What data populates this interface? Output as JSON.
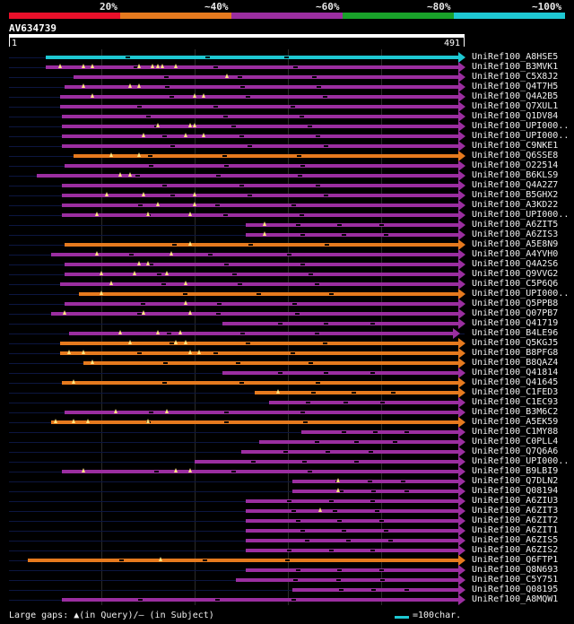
{
  "colors": {
    "teal": "#1ec8d2",
    "magenta": "#9b2ea0",
    "orange": "#e67a1e",
    "insertion": "#ffe680"
  },
  "legend": {
    "segments": [
      {
        "label": "20%",
        "color": "#e8102a"
      },
      {
        "label": "~40%",
        "color": "#e67a1e"
      },
      {
        "label": "~60%",
        "color": "#9b2ea0"
      },
      {
        "label": "~80%",
        "color": "#19a22a"
      },
      {
        "label": "~100%",
        "color": "#1ec8d2"
      }
    ]
  },
  "query": {
    "id": "AV634739",
    "start": "1",
    "end": "491"
  },
  "hits": [
    {
      "name": "UniRef100_A8HSE5",
      "c": "teal",
      "s": 40,
      "e": 491,
      "i": []
    },
    {
      "name": "UniRef100_B3MVK1",
      "c": "magenta",
      "s": 40,
      "e": 491,
      "i": [
        55,
        80,
        90,
        140,
        155,
        160,
        165,
        180
      ]
    },
    {
      "name": "UniRef100_C5X8J2",
      "c": "magenta",
      "s": 70,
      "e": 491,
      "i": [
        235
      ]
    },
    {
      "name": "UniRef100_Q4T7H5",
      "c": "magenta",
      "s": 60,
      "e": 491,
      "i": [
        80,
        130,
        140
      ]
    },
    {
      "name": "UniRef100_Q4A2B5",
      "c": "magenta",
      "s": 55,
      "e": 491,
      "i": [
        90,
        200,
        210
      ]
    },
    {
      "name": "UniRef100_Q7XUL1",
      "c": "magenta",
      "s": 55,
      "e": 491,
      "i": []
    },
    {
      "name": "UniRef100_Q1DV84",
      "c": "magenta",
      "s": 57,
      "e": 491,
      "i": []
    },
    {
      "name": "UniRef100_UPI000..",
      "c": "magenta",
      "s": 57,
      "e": 491,
      "i": [
        160,
        195,
        200
      ]
    },
    {
      "name": "UniRef100_UPI000..",
      "c": "magenta",
      "s": 57,
      "e": 491,
      "i": [
        145,
        190,
        210
      ]
    },
    {
      "name": "UniRef100_C9NKE1",
      "c": "magenta",
      "s": 57,
      "e": 491,
      "i": []
    },
    {
      "name": "UniRef100_Q6SSE8",
      "c": "orange",
      "s": 70,
      "e": 491,
      "i": [
        110,
        140
      ]
    },
    {
      "name": "UniRef100_O22514",
      "c": "magenta",
      "s": 60,
      "e": 491,
      "i": []
    },
    {
      "name": "UniRef100_B6KLS9",
      "c": "magenta",
      "s": 30,
      "e": 491,
      "i": [
        120,
        130
      ]
    },
    {
      "name": "UniRef100_Q4A2Z7",
      "c": "magenta",
      "s": 57,
      "e": 491,
      "i": []
    },
    {
      "name": "UniRef100_B5GHX2",
      "c": "magenta",
      "s": 57,
      "e": 491,
      "i": [
        105,
        145,
        200
      ]
    },
    {
      "name": "UniRef100_A3KD22",
      "c": "magenta",
      "s": 57,
      "e": 491,
      "i": [
        160,
        200
      ]
    },
    {
      "name": "UniRef100_UPI000..",
      "c": "magenta",
      "s": 57,
      "e": 491,
      "i": [
        95,
        150,
        195
      ]
    },
    {
      "name": "UniRef100_A6ZIT5",
      "c": "magenta",
      "s": 255,
      "e": 491,
      "i": [
        275
      ]
    },
    {
      "name": "UniRef100_A6ZIS3",
      "c": "magenta",
      "s": 255,
      "e": 491,
      "i": [
        275
      ]
    },
    {
      "name": "UniRef100_A5E8N9",
      "c": "orange",
      "s": 60,
      "e": 491,
      "i": [
        195
      ]
    },
    {
      "name": "UniRef100_A4YVH0",
      "c": "magenta",
      "s": 45,
      "e": 491,
      "i": [
        95,
        175
      ]
    },
    {
      "name": "UniRef100_Q4A2S6",
      "c": "magenta",
      "s": 60,
      "e": 491,
      "i": [
        140,
        150
      ]
    },
    {
      "name": "UniRef100_Q9VVG2",
      "c": "magenta",
      "s": 60,
      "e": 491,
      "i": [
        100,
        135,
        170
      ]
    },
    {
      "name": "UniRef100_C5P6Q6",
      "c": "magenta",
      "s": 55,
      "e": 491,
      "i": [
        110,
        190
      ]
    },
    {
      "name": "UniRef100_UPI000..",
      "c": "orange",
      "s": 75,
      "e": 491,
      "i": [
        100
      ]
    },
    {
      "name": "UniRef100_Q5PPB8",
      "c": "magenta",
      "s": 60,
      "e": 491,
      "i": [
        190
      ]
    },
    {
      "name": "UniRef100_Q07PB7",
      "c": "magenta",
      "s": 45,
      "e": 491,
      "i": [
        60,
        145,
        195
      ]
    },
    {
      "name": "UniRef100_Q41719",
      "c": "magenta",
      "s": 230,
      "e": 491,
      "i": []
    },
    {
      "name": "UniRef100_B4LE96",
      "c": "magenta",
      "s": 65,
      "e": 485,
      "i": [
        120,
        160,
        185
      ]
    },
    {
      "name": "UniRef100_Q5KGJ5",
      "c": "orange",
      "s": 55,
      "e": 491,
      "i": [
        130,
        180,
        190
      ]
    },
    {
      "name": "UniRef100_B8PFG8",
      "c": "orange",
      "s": 55,
      "e": 491,
      "i": [
        65,
        80,
        195,
        205
      ]
    },
    {
      "name": "UniRef100_B8QAZ4",
      "c": "orange",
      "s": 80,
      "e": 491,
      "i": [
        90
      ]
    },
    {
      "name": "UniRef100_Q41814",
      "c": "magenta",
      "s": 230,
      "e": 491,
      "i": []
    },
    {
      "name": "UniRef100_Q41645",
      "c": "orange",
      "s": 57,
      "e": 491,
      "i": [
        70
      ]
    },
    {
      "name": "UniRef100_C1FED3",
      "c": "orange",
      "s": 265,
      "e": 491,
      "i": [
        290
      ]
    },
    {
      "name": "UniRef100_C1EC93",
      "c": "magenta",
      "s": 280,
      "e": 491,
      "i": []
    },
    {
      "name": "UniRef100_B3M6C2",
      "c": "magenta",
      "s": 60,
      "e": 491,
      "i": [
        115,
        170
      ]
    },
    {
      "name": "UniRef100_A5EK59",
      "c": "orange",
      "s": 45,
      "e": 491,
      "i": [
        50,
        70,
        85,
        150
      ]
    },
    {
      "name": "UniRef100_C1MY88",
      "c": "magenta",
      "s": 315,
      "e": 491,
      "i": []
    },
    {
      "name": "UniRef100_C0PLL4",
      "c": "magenta",
      "s": 270,
      "e": 491,
      "i": []
    },
    {
      "name": "UniRef100_Q7Q6A6",
      "c": "magenta",
      "s": 250,
      "e": 491,
      "i": []
    },
    {
      "name": "UniRef100_UPI000..",
      "c": "magenta",
      "s": 200,
      "e": 491,
      "i": []
    },
    {
      "name": "UniRef100_B9LBI9",
      "c": "magenta",
      "s": 57,
      "e": 491,
      "i": [
        80,
        180,
        195
      ]
    },
    {
      "name": "UniRef100_Q7DLN2",
      "c": "magenta",
      "s": 305,
      "e": 491,
      "i": [
        355
      ]
    },
    {
      "name": "UniRef100_Q08194",
      "c": "magenta",
      "s": 305,
      "e": 491,
      "i": [
        355
      ]
    },
    {
      "name": "UniRef100_A6ZIU3",
      "c": "magenta",
      "s": 255,
      "e": 491,
      "i": []
    },
    {
      "name": "UniRef100_A6ZIT3",
      "c": "magenta",
      "s": 255,
      "e": 491,
      "i": [
        335
      ]
    },
    {
      "name": "UniRef100_A6ZIT2",
      "c": "magenta",
      "s": 255,
      "e": 491,
      "i": []
    },
    {
      "name": "UniRef100_A6ZIT1",
      "c": "magenta",
      "s": 255,
      "e": 491,
      "i": []
    },
    {
      "name": "UniRef100_A6ZIS5",
      "c": "magenta",
      "s": 255,
      "e": 491,
      "i": []
    },
    {
      "name": "UniRef100_A6ZIS2",
      "c": "magenta",
      "s": 255,
      "e": 491,
      "i": []
    },
    {
      "name": "UniRef100_Q6FTP1",
      "c": "orange",
      "s": 20,
      "e": 491,
      "i": [
        163
      ]
    },
    {
      "name": "UniRef100_Q8N693",
      "c": "magenta",
      "s": 255,
      "e": 491,
      "i": []
    },
    {
      "name": "UniRef100_C5Y751",
      "c": "magenta",
      "s": 245,
      "e": 491,
      "i": []
    },
    {
      "name": "UniRef100_Q08195",
      "c": "magenta",
      "s": 305,
      "e": 491,
      "i": []
    },
    {
      "name": "UniRef100_A8MQW1",
      "c": "magenta",
      "s": 57,
      "e": 491,
      "i": []
    }
  ],
  "footer": {
    "gaps": "Large gaps: ▲(in Query)/– (in Subject)",
    "scale": "=100char."
  }
}
